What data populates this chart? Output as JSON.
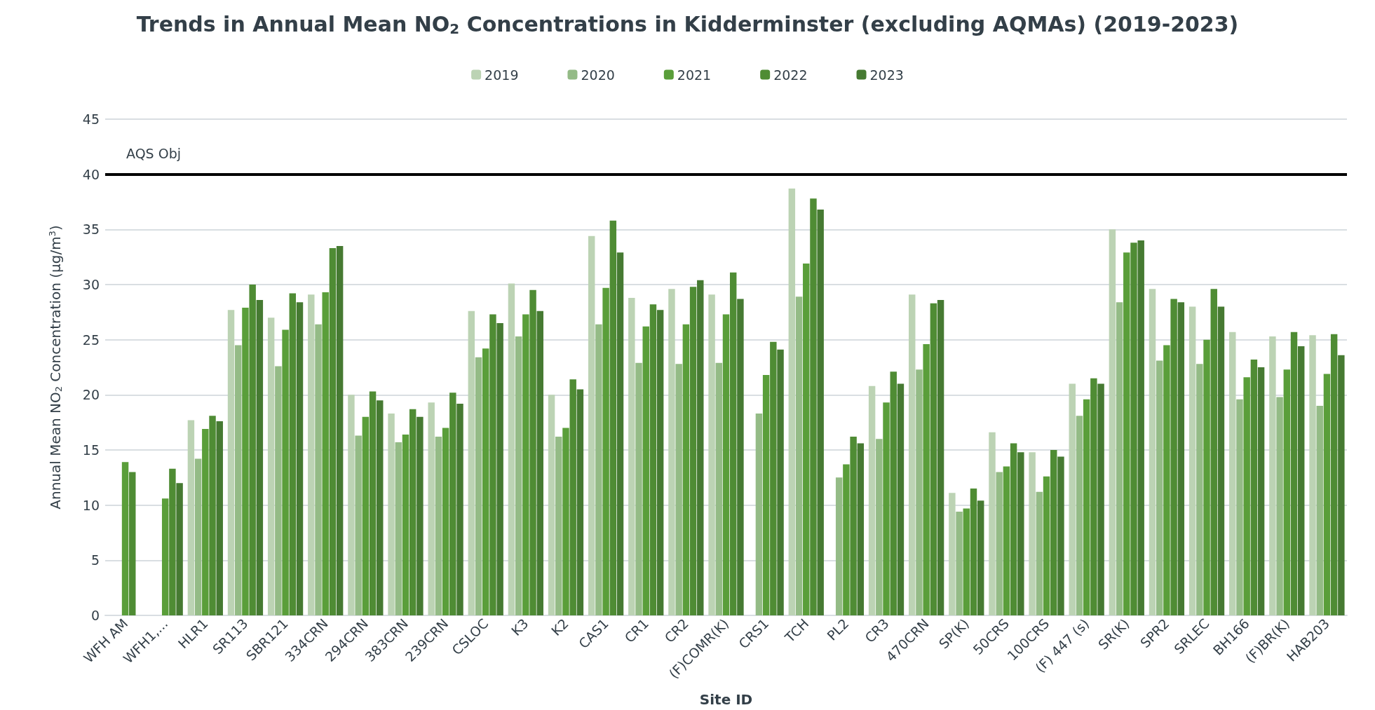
{
  "chart_data": {
    "type": "bar",
    "title": "Trends in Annual Mean NO$_{2}$ Concentrations in Kidderminster (excluding AQMAs) (2019-2023)",
    "xlabel": "Site ID",
    "ylabel": "Annual Mean NO$_{2}$ Concentration (µg/m$^{3}$)",
    "categories": [
      "WFH AM",
      "WFH1,...",
      "HLR1",
      "SR113",
      "SBR121",
      "334CRN",
      "294CRN",
      "383CRN",
      "239CRN",
      "CSLOC",
      "K3",
      "K2",
      "CAS1",
      "CR1",
      "CR2",
      "(F)COMR(K)",
      "CRS1",
      "TCH",
      "PL2",
      "CR3",
      "470CRN",
      "SP(K)",
      "50CRS",
      "100CRS",
      "(F) 447 (s)",
      "SR(K)",
      "SPR2",
      "SRLEC",
      "BH166",
      "(F)BR(K)",
      "HAB203"
    ],
    "series": [
      {
        "name": "2019",
        "color": "#bcd3b4",
        "values": [
          null,
          null,
          17.7,
          27.7,
          27.0,
          29.1,
          20.0,
          18.3,
          19.3,
          27.6,
          30.1,
          20.0,
          34.4,
          28.8,
          29.6,
          29.1,
          null,
          38.7,
          null,
          20.8,
          29.1,
          11.1,
          16.6,
          14.8,
          21.0,
          35.0,
          29.6,
          28.0,
          25.7,
          25.3,
          25.4
        ]
      },
      {
        "name": "2020",
        "color": "#94bb86",
        "values": [
          null,
          null,
          14.2,
          24.5,
          22.6,
          26.4,
          16.3,
          15.7,
          16.2,
          23.4,
          25.3,
          16.2,
          26.4,
          22.9,
          22.8,
          22.9,
          18.3,
          28.9,
          12.5,
          16.0,
          22.3,
          9.4,
          13.0,
          11.2,
          18.1,
          28.4,
          23.1,
          22.8,
          19.6,
          19.8,
          19.0
        ]
      },
      {
        "name": "2021",
        "color": "#5a9e3a",
        "values": [
          13.9,
          10.6,
          16.9,
          27.9,
          25.9,
          29.3,
          18.0,
          16.4,
          17.0,
          24.2,
          27.3,
          17.0,
          29.7,
          26.2,
          26.4,
          27.3,
          21.8,
          31.9,
          13.7,
          19.3,
          24.6,
          9.7,
          13.5,
          12.6,
          19.6,
          32.9,
          24.5,
          25.0,
          21.6,
          22.3,
          21.9
        ]
      },
      {
        "name": "2022",
        "color": "#4f8c34",
        "values": [
          13.0,
          13.3,
          18.1,
          30.0,
          29.2,
          33.3,
          20.3,
          18.7,
          20.2,
          27.3,
          29.5,
          21.4,
          35.8,
          28.2,
          29.8,
          31.1,
          24.8,
          37.8,
          16.2,
          22.1,
          28.3,
          11.5,
          15.6,
          15.0,
          21.5,
          33.8,
          28.7,
          29.6,
          23.2,
          25.7,
          25.5
        ]
      },
      {
        "name": "2023",
        "color": "#467a32",
        "values": [
          null,
          12.0,
          17.6,
          28.6,
          28.4,
          33.5,
          19.5,
          18.0,
          19.2,
          26.5,
          27.6,
          20.5,
          32.9,
          27.7,
          30.4,
          28.7,
          24.1,
          36.8,
          15.6,
          21.0,
          28.6,
          10.4,
          14.8,
          14.4,
          21.0,
          34.0,
          28.4,
          28.0,
          22.5,
          24.4,
          23.6
        ]
      }
    ],
    "ylim": [
      0,
      45
    ],
    "yticks": [
      0,
      5,
      10,
      15,
      20,
      25,
      30,
      35,
      40,
      45
    ],
    "grid": "y",
    "legend": "top",
    "ref_lines": [
      {
        "axis": "y",
        "value": 40,
        "label": "AQS Obj",
        "color": "#000000"
      }
    ]
  }
}
